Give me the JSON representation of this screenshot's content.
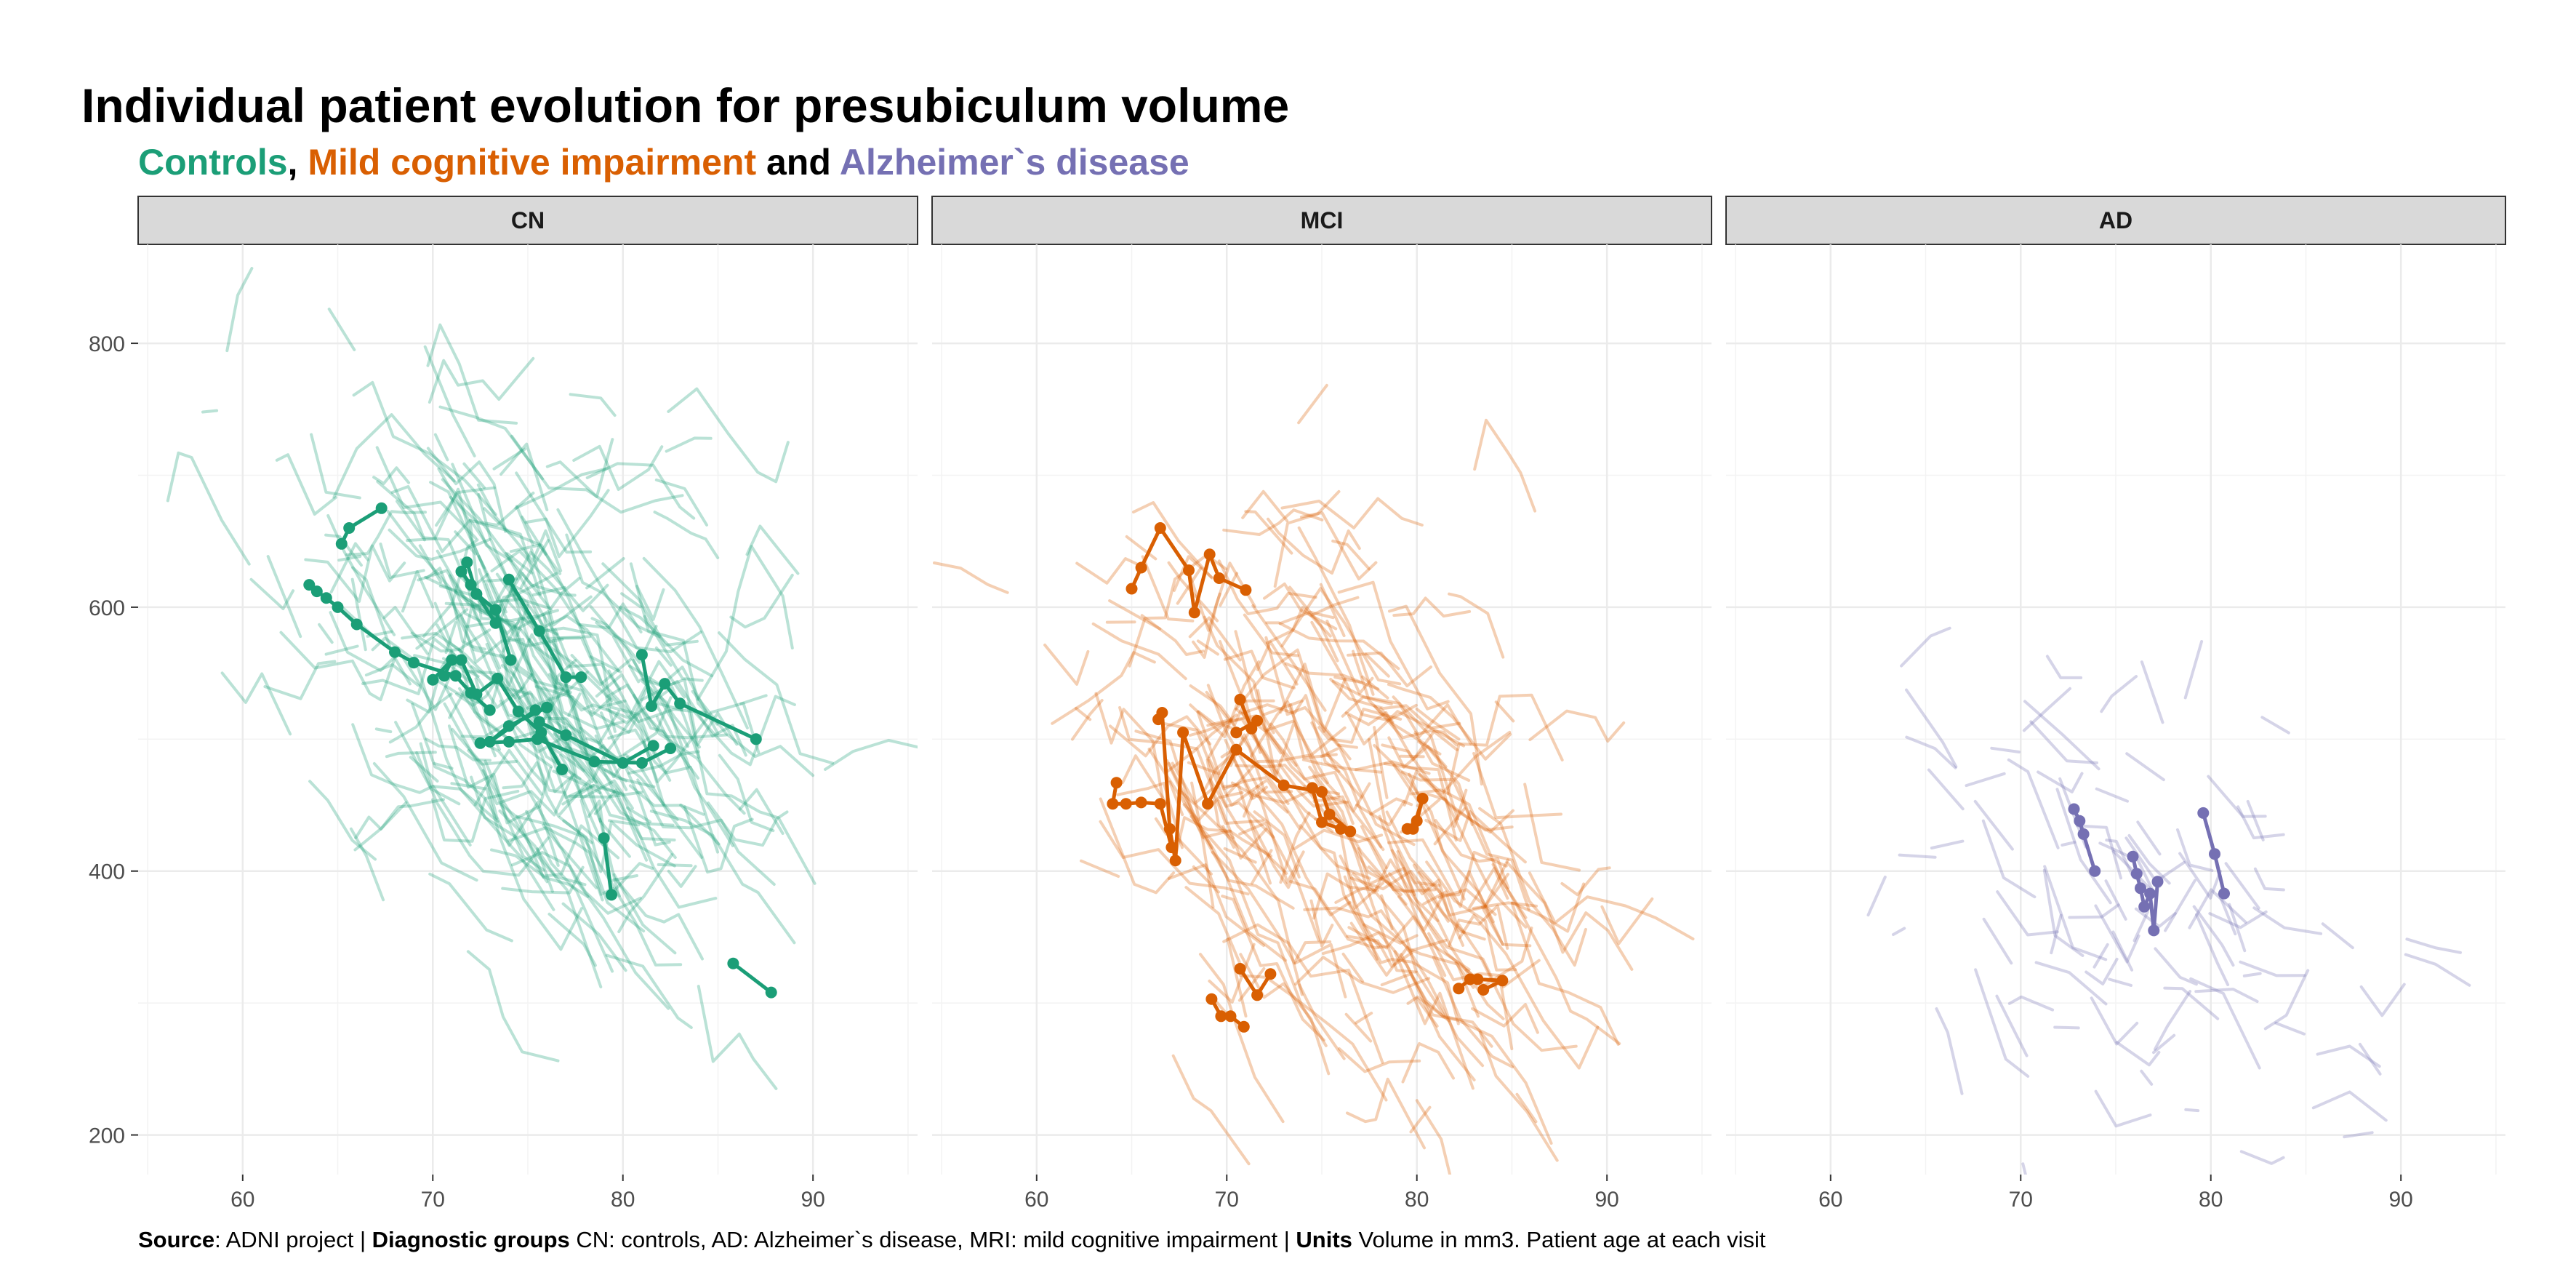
{
  "title": "Individual patient evolution for presubiculum volume",
  "subtitle": {
    "controls": "Controls",
    "sep1": ", ",
    "mci": "Mild cognitive impairment",
    "sep2": " and ",
    "ad": "Alzheimer`s disease"
  },
  "caption": {
    "source_label": "Source",
    "source_text": ": ADNI project | ",
    "groups_label": "Diagnostic groups",
    "groups_text": " CN: controls, AD: Alzheimer`s disease, MRI: mild cognitive impairment | ",
    "units_label": "Units",
    "units_text": " Volume in mm3. Patient age at each visit"
  },
  "colors": {
    "CN": "#1b9e77",
    "MCI": "#d95f02",
    "AD": "#7570b3",
    "grid": "#ebebeb",
    "strip_bg": "#d9d9d9"
  },
  "chart_data": {
    "type": "line",
    "xlim": [
      54.5,
      95.5
    ],
    "ylim": [
      170,
      875
    ],
    "x_ticks": [
      "60",
      "70",
      "80",
      "90"
    ],
    "y_ticks": [
      "200",
      "400",
      "600",
      "800"
    ],
    "grid": true,
    "panels": [
      {
        "name": "CN",
        "color_key": "CN",
        "highlighted": [
          [
            [
              65.2,
              648
            ],
            [
              65.6,
              660
            ],
            [
              67.3,
              675
            ]
          ],
          [
            [
              63.5,
              617
            ],
            [
              63.9,
              612
            ],
            [
              64.4,
              607
            ],
            [
              65.0,
              600
            ],
            [
              66.0,
              587
            ],
            [
              68.0,
              566
            ],
            [
              69.0,
              558
            ],
            [
              71.2,
              548
            ],
            [
              72.0,
              535
            ],
            [
              73.0,
              522
            ]
          ],
          [
            [
              71.8,
              634
            ],
            [
              72.3,
              610
            ],
            [
              73.3,
              598
            ],
            [
              74.1,
              560
            ]
          ],
          [
            [
              71.5,
              627
            ],
            [
              72.0,
              617
            ],
            [
              73.3,
              588
            ]
          ],
          [
            [
              74.0,
              621
            ],
            [
              75.6,
              582
            ],
            [
              77.0,
              547
            ],
            [
              77.8,
              547
            ]
          ],
          [
            [
              71.5,
              560
            ],
            [
              72.3,
              534
            ],
            [
              73.4,
              546
            ],
            [
              74.5,
              521
            ],
            [
              75.7,
              505
            ],
            [
              76.8,
              477
            ]
          ],
          [
            [
              76.0,
              524
            ],
            [
              74.0,
              510
            ],
            [
              73.0,
              498
            ],
            [
              75.4,
              522
            ]
          ],
          [
            [
              70.0,
              545
            ],
            [
              71.0,
              560
            ],
            [
              70.6,
              548
            ]
          ],
          [
            [
              72.5,
              497
            ],
            [
              74.0,
              498
            ],
            [
              75.5,
              500
            ],
            [
              78.5,
              483
            ],
            [
              81.0,
              482
            ],
            [
              82.5,
              493
            ]
          ],
          [
            [
              75.6,
              513
            ],
            [
              77.0,
              503
            ],
            [
              80.0,
              482
            ],
            [
              81.6,
              495
            ]
          ],
          [
            [
              81.0,
              564
            ],
            [
              81.5,
              525
            ],
            [
              82.2,
              542
            ],
            [
              83.0,
              527
            ],
            [
              87.0,
              500
            ]
          ],
          [
            [
              79.0,
              425
            ],
            [
              79.4,
              382
            ]
          ],
          [
            [
              85.8,
              330
            ],
            [
              87.8,
              308
            ]
          ]
        ]
      },
      {
        "name": "MCI",
        "color_key": "MCI",
        "highlighted": [
          [
            [
              65.0,
              614
            ],
            [
              65.5,
              630
            ],
            [
              66.5,
              660
            ],
            [
              68.0,
              628
            ],
            [
              68.3,
              596
            ],
            [
              69.1,
              640
            ],
            [
              69.6,
              622
            ],
            [
              71.0,
              613
            ]
          ],
          [
            [
              66.4,
              515
            ],
            [
              66.6,
              520
            ],
            [
              67.0,
              432
            ],
            [
              67.3,
              408
            ],
            [
              67.7,
              505
            ],
            [
              69.0,
              451
            ],
            [
              70.5,
              492
            ],
            [
              73.0,
              465
            ],
            [
              75.0,
              460
            ],
            [
              75.4,
              443
            ],
            [
              76.5,
              430
            ]
          ],
          [
            [
              64.2,
              467
            ],
            [
              64.0,
              451
            ],
            [
              64.7,
              451
            ],
            [
              65.5,
              452
            ],
            [
              66.5,
              451
            ],
            [
              67.1,
              418
            ]
          ],
          [
            [
              70.7,
              530
            ],
            [
              71.3,
              508
            ],
            [
              71.6,
              514
            ],
            [
              70.5,
              505
            ]
          ],
          [
            [
              74.5,
              463
            ],
            [
              75.0,
              437
            ],
            [
              76.0,
              432
            ]
          ],
          [
            [
              79.5,
              432
            ],
            [
              80.0,
              438
            ],
            [
              80.3,
              455
            ],
            [
              79.8,
              432
            ]
          ],
          [
            [
              70.7,
              326
            ],
            [
              71.6,
              306
            ],
            [
              72.3,
              322
            ]
          ],
          [
            [
              69.2,
              303
            ],
            [
              69.7,
              290
            ],
            [
              70.2,
              290
            ],
            [
              70.9,
              282
            ]
          ],
          [
            [
              82.2,
              311
            ],
            [
              82.8,
              318
            ],
            [
              83.2,
              318
            ],
            [
              84.5,
              317
            ],
            [
              83.5,
              310
            ]
          ]
        ]
      },
      {
        "name": "AD",
        "color_key": "AD",
        "highlighted": [
          [
            [
              72.8,
              447
            ],
            [
              73.1,
              438
            ],
            [
              73.3,
              428
            ],
            [
              73.9,
              400
            ]
          ],
          [
            [
              75.9,
              411
            ],
            [
              76.1,
              398
            ],
            [
              76.3,
              387
            ],
            [
              76.5,
              373
            ],
            [
              76.8,
              383
            ],
            [
              77.0,
              355
            ],
            [
              77.2,
              392
            ]
          ],
          [
            [
              79.6,
              444
            ],
            [
              80.2,
              413
            ],
            [
              80.7,
              383
            ]
          ]
        ]
      }
    ]
  }
}
